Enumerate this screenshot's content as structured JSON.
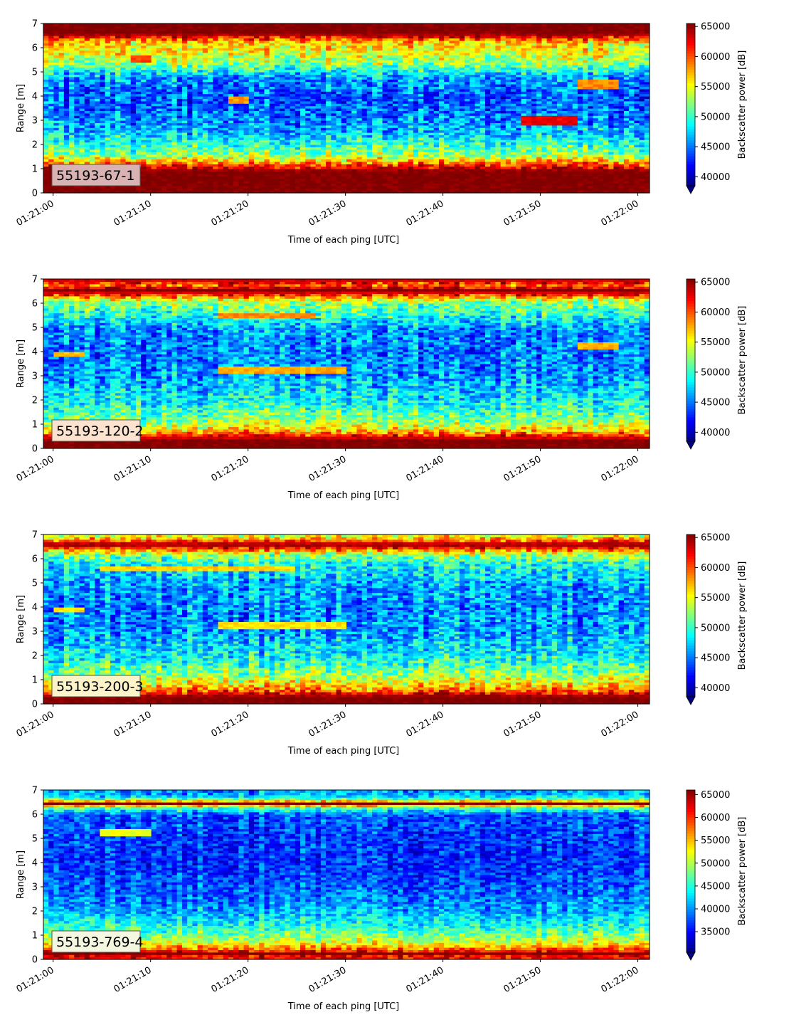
{
  "figure": {
    "x_label": "Time of each ping [UTC]",
    "y_label": "Range [m]",
    "colorbar_label": "Backscatter power [dB]",
    "x_tick_labels": [
      "01:21:00",
      "01:21:10",
      "01:21:20",
      "01:21:30",
      "01:21:40",
      "01:21:50",
      "01:22:00"
    ],
    "y_tick_labels": [
      "0",
      "1",
      "2",
      "3",
      "4",
      "5",
      "6",
      "7"
    ]
  },
  "chart_data": [
    {
      "type": "heatmap",
      "panel_label": "55193-67-1",
      "label_box_color": "#d9b3b3",
      "x_start": "01:21:00",
      "x_end": "01:22:00",
      "x_unit": "s",
      "ylim": [
        0,
        7
      ],
      "ylabel": "Range [m]",
      "xlabel": "Time of each ping [UTC]",
      "colormap": "jet",
      "clim": [
        38500,
        65500
      ],
      "colorbar_ticks": [
        40000,
        45000,
        50000,
        55000,
        60000,
        65000
      ],
      "colorbar_label": "Backscatter power [dB]",
      "colorbar_extend": "min",
      "profile": [
        {
          "r": 0.15,
          "v": 65500
        },
        {
          "r": 0.25,
          "v": 65500
        },
        {
          "r": 0.9,
          "v": 65500
        },
        {
          "r": 1.05,
          "v": 63000
        },
        {
          "r": 1.2,
          "v": 60000
        },
        {
          "r": 1.5,
          "v": 53000
        },
        {
          "r": 2.0,
          "v": 50000
        },
        {
          "r": 2.6,
          "v": 46500
        },
        {
          "r": 3.2,
          "v": 45000
        },
        {
          "r": 4.0,
          "v": 44000
        },
        {
          "r": 4.8,
          "v": 46000
        },
        {
          "r": 5.3,
          "v": 52000
        },
        {
          "r": 5.8,
          "v": 55000
        },
        {
          "r": 6.2,
          "v": 56000
        },
        {
          "r": 6.45,
          "v": 62000
        },
        {
          "r": 6.6,
          "v": 65500
        },
        {
          "r": 7.0,
          "v": 65500
        }
      ],
      "features": [
        {
          "t0": 48,
          "t1": 54,
          "r0": 2.85,
          "r1": 3.15,
          "v": 62500
        },
        {
          "t0": 54,
          "t1": 58,
          "r0": 4.35,
          "r1": 4.65,
          "v": 58500
        },
        {
          "t0": 8,
          "t1": 10,
          "r0": 5.4,
          "r1": 5.7,
          "v": 60500
        },
        {
          "t0": 18,
          "t1": 20,
          "r0": 3.7,
          "r1": 4.0,
          "v": 58000
        }
      ],
      "noise": 4200
    },
    {
      "type": "heatmap",
      "panel_label": "55193-120-2",
      "label_box_color": "#fbe3cf",
      "x_start": "01:21:00",
      "x_end": "01:22:00",
      "x_unit": "s",
      "ylim": [
        0,
        7
      ],
      "ylabel": "Range [m]",
      "xlabel": "Time of each ping [UTC]",
      "colormap": "jet",
      "clim": [
        38500,
        65500
      ],
      "colorbar_ticks": [
        40000,
        45000,
        50000,
        55000,
        60000,
        65000
      ],
      "colorbar_label": "Backscatter power [dB]",
      "colorbar_extend": "min",
      "profile": [
        {
          "r": 0.1,
          "v": 65500
        },
        {
          "r": 0.35,
          "v": 65500
        },
        {
          "r": 0.55,
          "v": 61000
        },
        {
          "r": 0.8,
          "v": 56000
        },
        {
          "r": 1.2,
          "v": 52000
        },
        {
          "r": 2.0,
          "v": 48500
        },
        {
          "r": 3.0,
          "v": 46000
        },
        {
          "r": 4.0,
          "v": 45000
        },
        {
          "r": 5.0,
          "v": 46000
        },
        {
          "r": 5.6,
          "v": 50000
        },
        {
          "r": 6.1,
          "v": 53000
        },
        {
          "r": 6.35,
          "v": 61000
        },
        {
          "r": 6.55,
          "v": 65500
        },
        {
          "r": 6.75,
          "v": 60000
        },
        {
          "r": 7.0,
          "v": 64000
        }
      ],
      "features": [
        {
          "t0": 17,
          "t1": 30,
          "r0": 3.15,
          "r1": 3.4,
          "v": 57500
        },
        {
          "t0": 17,
          "t1": 27,
          "r0": 5.4,
          "r1": 5.6,
          "v": 58500
        },
        {
          "t0": 54,
          "t1": 58,
          "r0": 4.15,
          "r1": 4.35,
          "v": 57500
        },
        {
          "t0": 0,
          "t1": 3,
          "r0": 3.8,
          "r1": 4.0,
          "v": 57000
        }
      ],
      "noise": 4200
    },
    {
      "type": "heatmap",
      "panel_label": "55193-200-3",
      "label_box_color": "#fdf3c8",
      "x_start": "01:21:00",
      "x_end": "01:22:00",
      "x_unit": "s",
      "ylim": [
        0,
        7
      ],
      "ylabel": "Range [m]",
      "xlabel": "Time of each ping [UTC]",
      "colormap": "jet",
      "clim": [
        38500,
        65500
      ],
      "colorbar_ticks": [
        40000,
        45000,
        50000,
        55000,
        60000,
        65000
      ],
      "colorbar_label": "Backscatter power [dB]",
      "colorbar_extend": "min",
      "profile": [
        {
          "r": 0.15,
          "v": 65500
        },
        {
          "r": 0.3,
          "v": 65500
        },
        {
          "r": 0.5,
          "v": 61000
        },
        {
          "r": 0.8,
          "v": 56000
        },
        {
          "r": 1.3,
          "v": 52000
        },
        {
          "r": 2.0,
          "v": 48500
        },
        {
          "r": 3.0,
          "v": 46000
        },
        {
          "r": 4.0,
          "v": 45500
        },
        {
          "r": 5.0,
          "v": 46500
        },
        {
          "r": 5.8,
          "v": 49000
        },
        {
          "r": 6.2,
          "v": 53000
        },
        {
          "r": 6.45,
          "v": 62000
        },
        {
          "r": 6.6,
          "v": 65500
        },
        {
          "r": 6.8,
          "v": 58000
        },
        {
          "r": 7.0,
          "v": 54000
        }
      ],
      "features": [
        {
          "t0": 17,
          "t1": 30,
          "r0": 3.15,
          "r1": 3.4,
          "v": 56000
        },
        {
          "t0": 5,
          "t1": 25,
          "r0": 5.5,
          "r1": 5.7,
          "v": 56500
        },
        {
          "t0": 0,
          "t1": 3,
          "r0": 3.8,
          "r1": 4.0,
          "v": 56000
        }
      ],
      "noise": 4200
    },
    {
      "type": "heatmap",
      "panel_label": "55193-769-4",
      "label_box_color": "#f4f8e0",
      "x_start": "01:21:00",
      "x_end": "01:22:00",
      "x_unit": "s",
      "ylim": [
        0,
        7
      ],
      "ylabel": "Range [m]",
      "xlabel": "Time of each ping [UTC]",
      "colormap": "jet",
      "clim": [
        30500,
        66000
      ],
      "colorbar_ticks": [
        35000,
        40000,
        45000,
        50000,
        55000,
        60000,
        65000
      ],
      "colorbar_label": "Backscatter power [dB]",
      "colorbar_extend": "min",
      "profile": [
        {
          "r": 0.15,
          "v": 62000
        },
        {
          "r": 0.25,
          "v": 66000
        },
        {
          "r": 0.4,
          "v": 59000
        },
        {
          "r": 0.7,
          "v": 52000
        },
        {
          "r": 1.2,
          "v": 46000
        },
        {
          "r": 2.0,
          "v": 41000
        },
        {
          "r": 3.0,
          "v": 38000
        },
        {
          "r": 4.0,
          "v": 36500
        },
        {
          "r": 5.0,
          "v": 37000
        },
        {
          "r": 6.0,
          "v": 38000
        },
        {
          "r": 6.3,
          "v": 48000
        },
        {
          "r": 6.45,
          "v": 66000
        },
        {
          "r": 6.6,
          "v": 48000
        },
        {
          "r": 6.8,
          "v": 41000
        },
        {
          "r": 7.0,
          "v": 40000
        }
      ],
      "features": [
        {
          "t0": 5,
          "t1": 10,
          "r0": 5.15,
          "r1": 5.4,
          "v": 52000
        }
      ],
      "noise": 4500
    }
  ]
}
